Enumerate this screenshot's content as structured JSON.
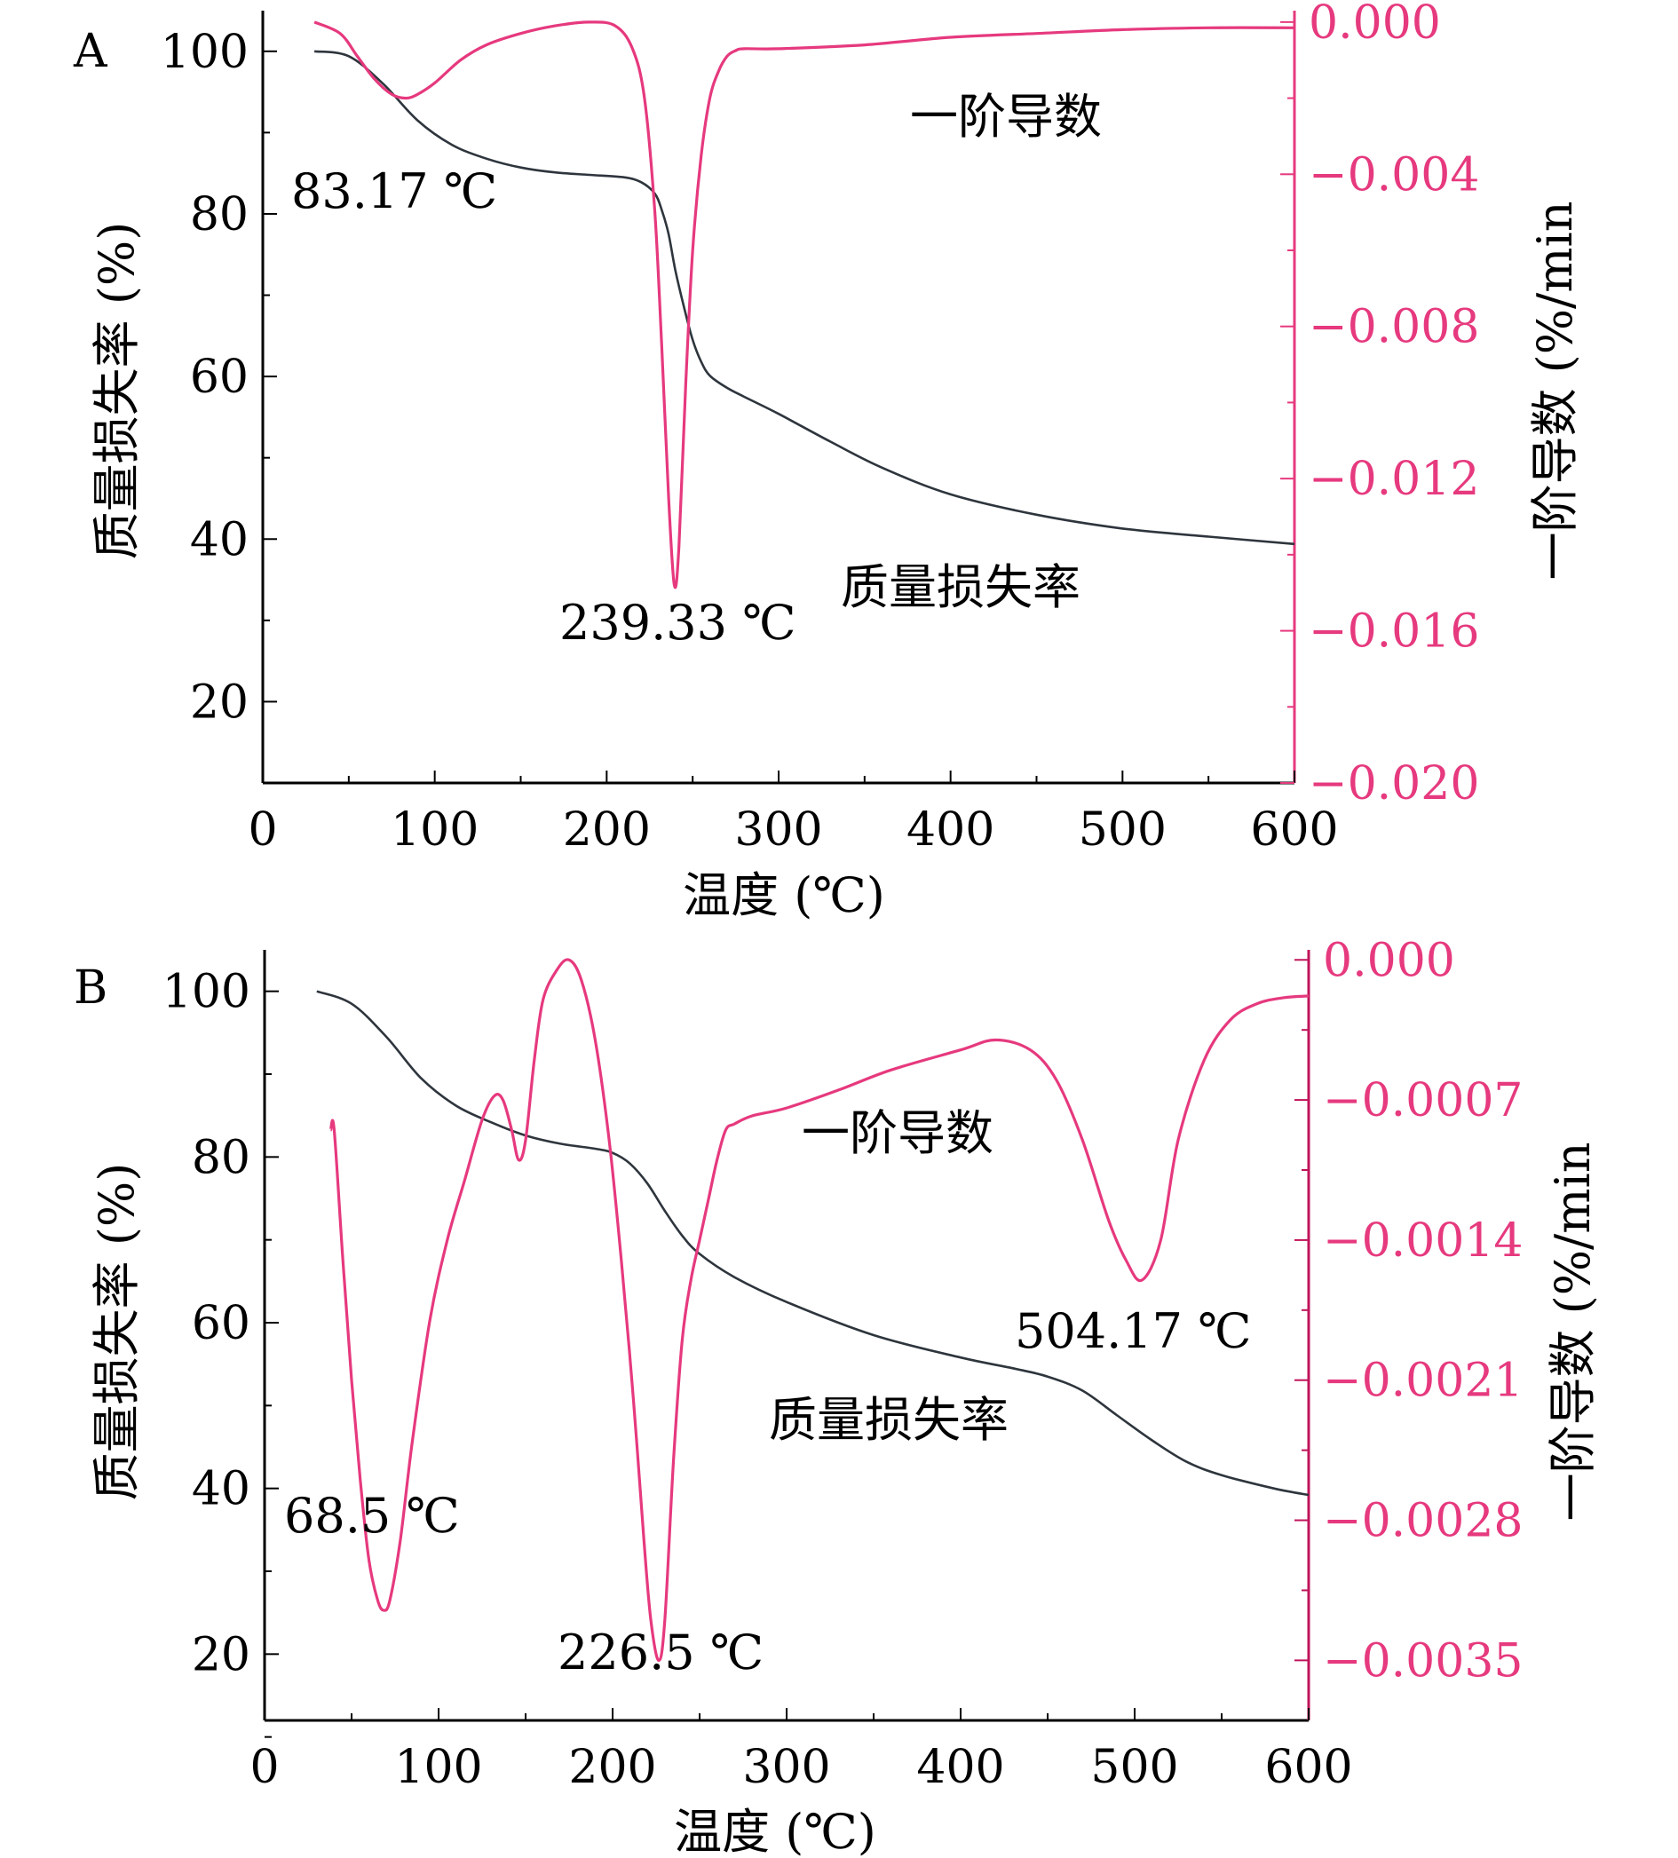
{
  "colors": {
    "tga": "#2e353d",
    "dtg": "#e6397e",
    "axis": "#000000"
  },
  "chart_data": [
    {
      "panel": "A",
      "type": "line",
      "xlabel": "温度 (℃)",
      "ylabel": "质量损失率 (%)",
      "y2label": "一阶导数 (%/min",
      "xlim": [
        0,
        600
      ],
      "ylim": [
        10,
        105
      ],
      "y2lim": [
        -0.02,
        0.0003
      ],
      "xticks": [
        0,
        100,
        200,
        300,
        400,
        500,
        600
      ],
      "yticks": [
        20,
        40,
        60,
        80,
        100
      ],
      "y2ticks": [
        -0.02,
        -0.016,
        -0.012,
        -0.008,
        -0.004,
        0.0
      ],
      "xtick_labels": [
        "0",
        "100",
        "200",
        "300",
        "400",
        "500",
        "600"
      ],
      "ytick_labels": [
        "20",
        "40",
        "60",
        "80",
        "100"
      ],
      "y2tick_labels": [
        "−0.020",
        "−0.016",
        "−0.012",
        "−0.008",
        "−0.004",
        "0.000"
      ],
      "series": [
        {
          "name": "质量损失率",
          "axis": "left",
          "x": [
            30,
            50,
            70,
            90,
            110,
            130,
            150,
            170,
            190,
            210,
            220,
            228,
            232,
            236,
            240,
            245,
            250,
            255,
            260,
            270,
            280,
            300,
            330,
            360,
            400,
            450,
            500,
            550,
            600
          ],
          "y": [
            100,
            99.4,
            96,
            91.5,
            88.5,
            86.8,
            85.7,
            85.1,
            84.8,
            84.5,
            83.9,
            82.5,
            80.5,
            77.5,
            73,
            68.5,
            64.5,
            61.8,
            60.1,
            58.6,
            57.5,
            55.4,
            52,
            48.8,
            45.5,
            43,
            41.3,
            40.3,
            39.4
          ]
        },
        {
          "name": "一阶导数",
          "axis": "right",
          "x": [
            30,
            45,
            55,
            65,
            75,
            83.17,
            90,
            100,
            115,
            130,
            150,
            170,
            190,
            205,
            215,
            222,
            228,
            232,
            236,
            239.33,
            242,
            246,
            250,
            255,
            260,
            265,
            270,
            275,
            280,
            300,
            350,
            400,
            450,
            500,
            550,
            600
          ],
          "y": [
            0.0,
            -0.0003,
            -0.0009,
            -0.0015,
            -0.0019,
            -0.002,
            -0.0019,
            -0.0016,
            -0.001,
            -0.0006,
            -0.0003,
            -0.0001,
            0.0,
            -0.0001,
            -0.0007,
            -0.002,
            -0.005,
            -0.0085,
            -0.0125,
            -0.0148,
            -0.0138,
            -0.0095,
            -0.006,
            -0.0035,
            -0.002,
            -0.0013,
            -0.0009,
            -0.00075,
            -0.0007,
            -0.0007,
            -0.0006,
            -0.0004,
            -0.0003,
            -0.0002,
            -0.00015,
            -0.00015
          ]
        }
      ],
      "labels": {
        "panel": "A",
        "peak1": "83.17 ℃",
        "peak2": "239.33 ℃",
        "dtg_name": "一阶导数",
        "tga_name": "质量损失率"
      }
    },
    {
      "panel": "B",
      "type": "line",
      "xlabel": "温度 (℃)",
      "ylabel": "质量损失率 (%)",
      "y2label": "一阶导数 (%/min",
      "xlim": [
        0,
        600
      ],
      "ylim": [
        12,
        105
      ],
      "y2lim": [
        -0.0038,
        5e-05
      ],
      "xticks": [
        0,
        100,
        200,
        300,
        400,
        500,
        600
      ],
      "yticks": [
        20,
        40,
        60,
        80,
        100
      ],
      "y2ticks": [
        -0.0035,
        -0.0028,
        -0.0021,
        -0.0014,
        -0.0007,
        0.0
      ],
      "xtick_labels": [
        "0",
        "100",
        "200",
        "300",
        "400",
        "500",
        "600"
      ],
      "ytick_labels": [
        "20",
        "40",
        "60",
        "80",
        "100"
      ],
      "y2tick_labels": [
        "−0.0035",
        "−0.0028",
        "−0.0021",
        "−0.0014",
        "−0.0007",
        "0.000"
      ],
      "series": [
        {
          "name": "质量损失率",
          "axis": "left",
          "x": [
            30,
            50,
            70,
            90,
            110,
            130,
            150,
            170,
            190,
            200,
            210,
            220,
            230,
            240,
            250,
            270,
            300,
            350,
            400,
            430,
            450,
            470,
            490,
            510,
            530,
            550,
            580,
            600
          ],
          "y": [
            100,
            98.5,
            94.5,
            89.5,
            86.2,
            84.2,
            82.6,
            81.6,
            81,
            80.5,
            79.2,
            76.8,
            73.5,
            70.5,
            68.3,
            65.5,
            62.5,
            58.5,
            55.8,
            54.5,
            53.5,
            51.8,
            48.8,
            45.8,
            43.2,
            41.6,
            40,
            39.2
          ]
        },
        {
          "name": "一阶导数",
          "axis": "right",
          "x": [
            38,
            40,
            45,
            50,
            55,
            60,
            65,
            68.5,
            72,
            78,
            85,
            95,
            105,
            115,
            125,
            132,
            137,
            142,
            146,
            150,
            155,
            160,
            168,
            175,
            182,
            190,
            198,
            205,
            212,
            218,
            222,
            226.5,
            230,
            235,
            240,
            245,
            250,
            255,
            260,
            265,
            270,
            280,
            300,
            330,
            360,
            400,
            420,
            440,
            455,
            470,
            485,
            495,
            504.17,
            515,
            525,
            540,
            555,
            570,
            585,
            600
          ],
          "y": [
            -0.00085,
            -0.00085,
            -0.0015,
            -0.0021,
            -0.0026,
            -0.003,
            -0.0032,
            -0.00325,
            -0.0032,
            -0.0029,
            -0.0024,
            -0.0018,
            -0.0014,
            -0.0011,
            -0.0008,
            -0.00068,
            -0.0007,
            -0.00085,
            -0.001,
            -0.0009,
            -0.0005,
            -0.0002,
            -5e-05,
            0.0,
            -0.0001,
            -0.0004,
            -0.0009,
            -0.0015,
            -0.0022,
            -0.0029,
            -0.0033,
            -0.0035,
            -0.0033,
            -0.0025,
            -0.0019,
            -0.0016,
            -0.0014,
            -0.0012,
            -0.001,
            -0.00085,
            -0.00082,
            -0.00078,
            -0.00074,
            -0.00065,
            -0.00055,
            -0.00045,
            -0.0004,
            -0.00045,
            -0.0006,
            -0.0009,
            -0.0013,
            -0.0015,
            -0.0016,
            -0.0014,
            -0.0009,
            -0.0005,
            -0.0003,
            -0.00022,
            -0.00019,
            -0.00018
          ]
        }
      ],
      "labels": {
        "panel": "B",
        "peak1": "68.5 ℃",
        "peak2": "226.5 ℃",
        "peak3": "504.17 ℃",
        "dtg_name": "一阶导数",
        "tga_name": "质量损失率"
      }
    }
  ]
}
